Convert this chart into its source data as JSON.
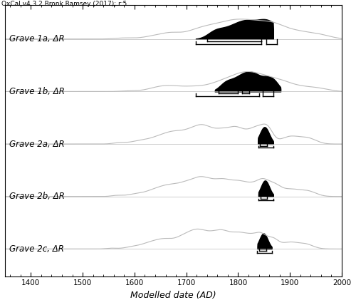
{
  "title": "OxCal v4.3.2 Bronk Ramsey (2017); r:5",
  "xlabel": "Modelled date (AD)",
  "xlim": [
    1350,
    2000
  ],
  "xticks": [
    1400,
    1500,
    1600,
    1700,
    1800,
    1900,
    2000
  ],
  "labels": [
    "Grave 1a, ΔR",
    "Grave 1b, ΔR",
    "Grave 2a, ΔR",
    "Grave 2b, ΔR",
    "Grave 2c, ΔR"
  ],
  "curve_color": "#bbbbbb",
  "fill_color": "#000000",
  "background": "#ffffff",
  "label_fontsize": 8.5,
  "title_fontsize": 6.5,
  "row_scale": 0.38
}
